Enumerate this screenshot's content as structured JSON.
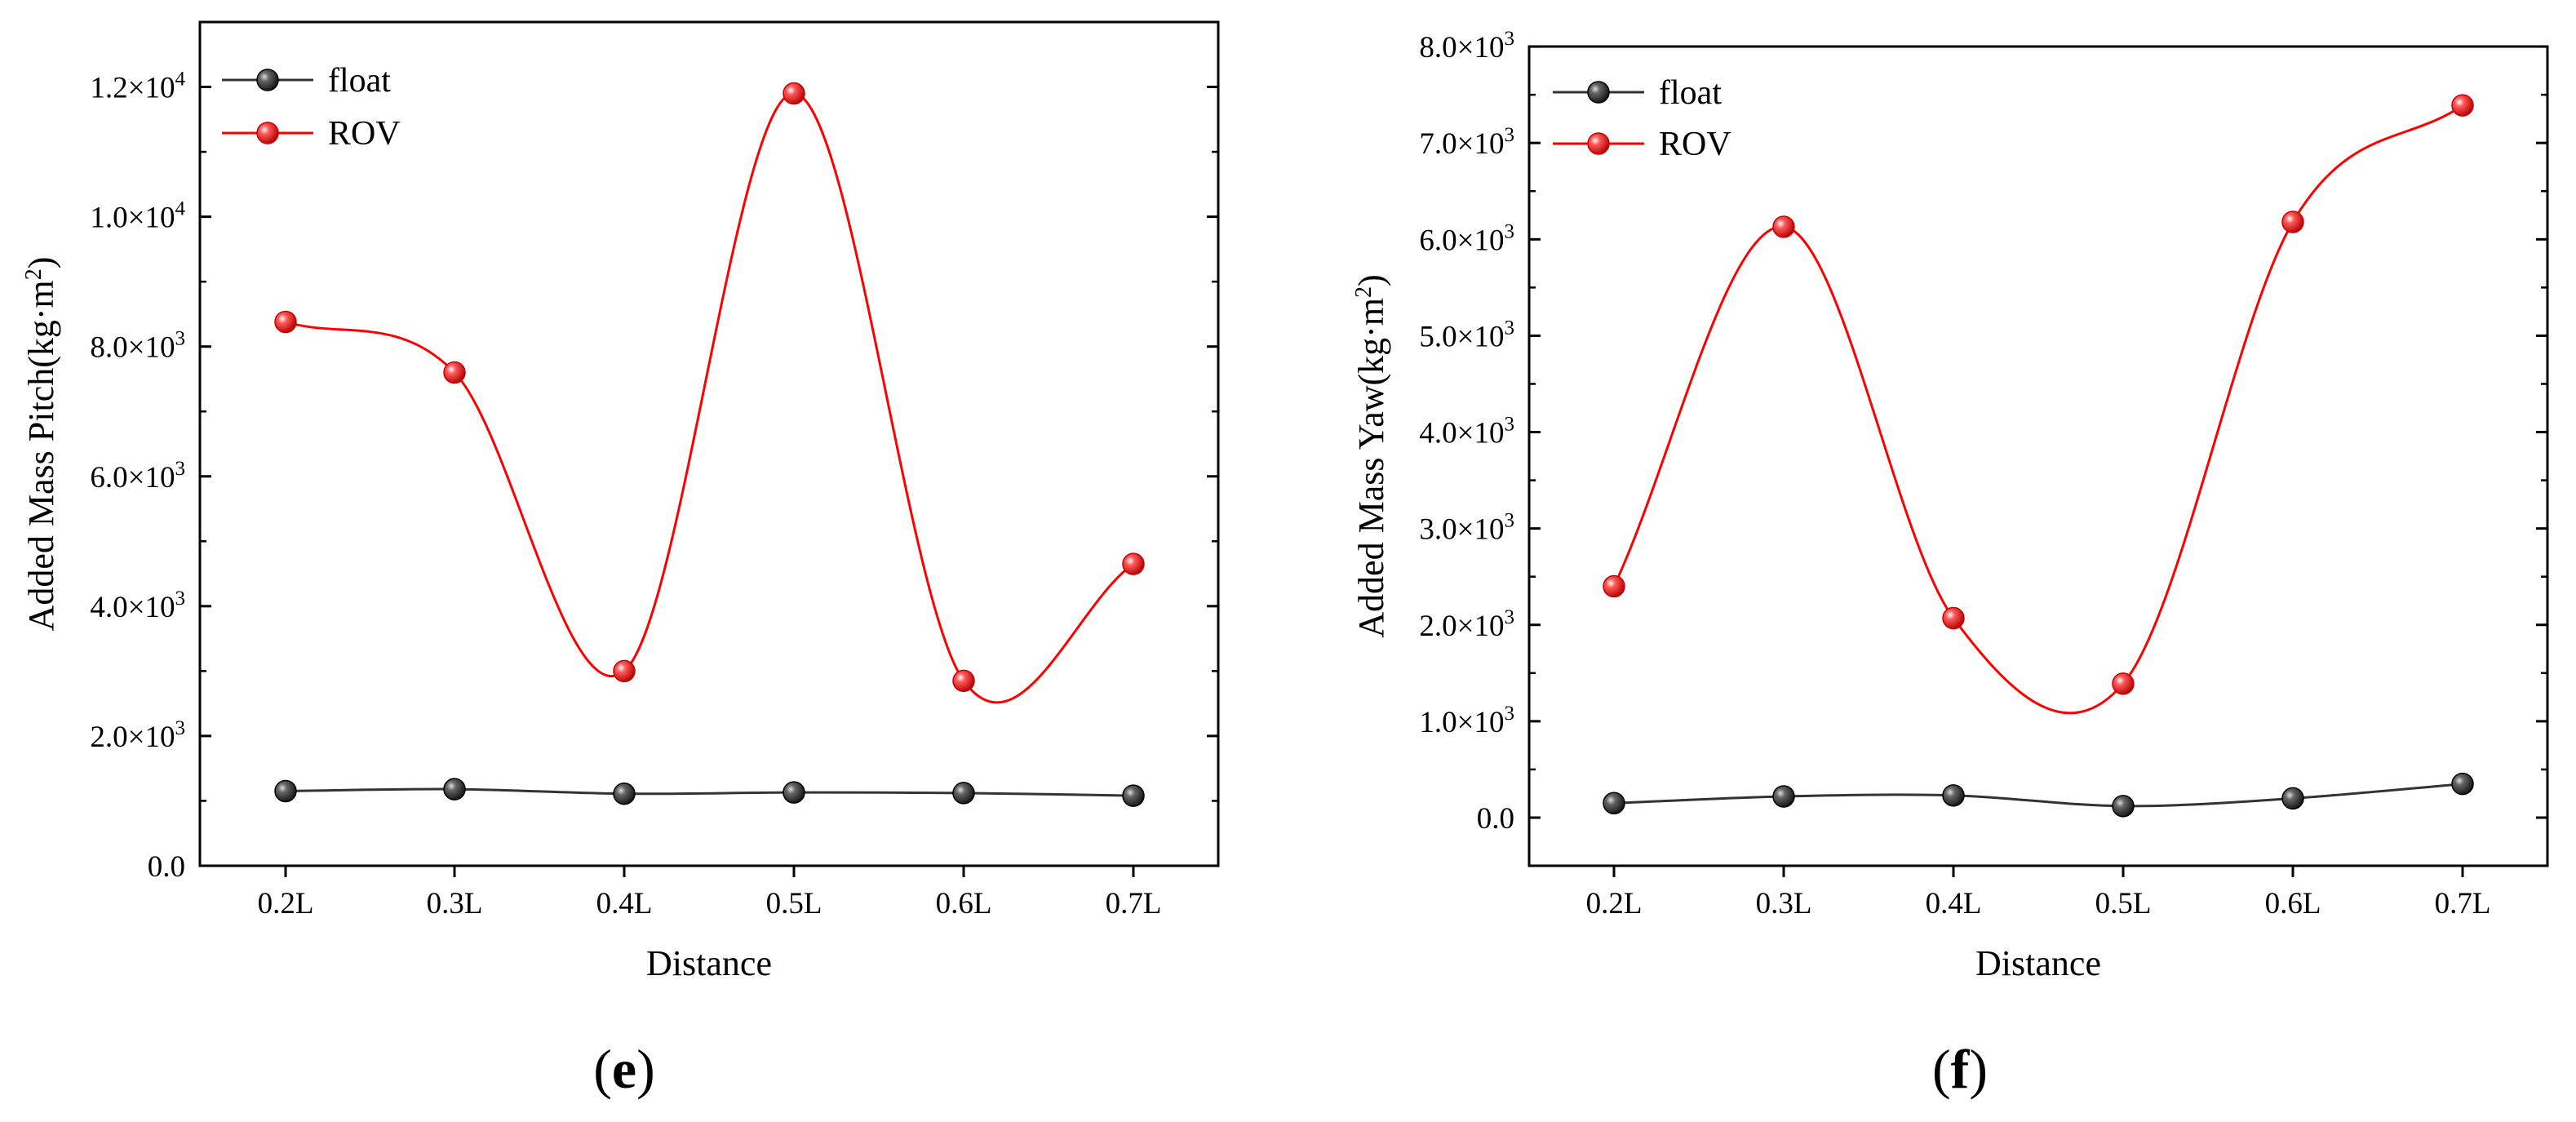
{
  "chart_data": [
    {
      "type": "line",
      "panel_label": "e",
      "categories": [
        "0.2L",
        "0.3L",
        "0.4L",
        "0.5L",
        "0.6L",
        "0.7L"
      ],
      "xlabel": "Distance",
      "ylabel": "Added Mass Pitch(kg·m²)",
      "ylim": [
        0,
        13000
      ],
      "y_ticks": [
        {
          "value": 0,
          "mant": "0.0",
          "exp": ""
        },
        {
          "value": 2000,
          "mant": "2.0×10",
          "exp": "3"
        },
        {
          "value": 4000,
          "mant": "4.0×10",
          "exp": "3"
        },
        {
          "value": 6000,
          "mant": "6.0×10",
          "exp": "3"
        },
        {
          "value": 8000,
          "mant": "8.0×10",
          "exp": "3"
        },
        {
          "value": 10000,
          "mant": "1.0×10",
          "exp": "4"
        },
        {
          "value": 12000,
          "mant": "1.2×10",
          "exp": "4"
        }
      ],
      "legend_position": "top-left",
      "series": [
        {
          "name": "float",
          "color": "#333333",
          "values": [
            1150,
            1180,
            1110,
            1130,
            1120,
            1080
          ]
        },
        {
          "name": "ROV",
          "color": "#ff0000",
          "values": [
            8380,
            7600,
            3000,
            11900,
            2850,
            4650
          ]
        }
      ]
    },
    {
      "type": "line",
      "panel_label": "f",
      "categories": [
        "0.2L",
        "0.3L",
        "0.4L",
        "0.5L",
        "0.6L",
        "0.7L"
      ],
      "xlabel": "Distance",
      "ylabel": "Added Mass Yaw(kg·m²)",
      "ylim": [
        -500,
        8000
      ],
      "y_ticks": [
        {
          "value": 0,
          "mant": "0.0",
          "exp": ""
        },
        {
          "value": 1000,
          "mant": "1.0×10",
          "exp": "3"
        },
        {
          "value": 2000,
          "mant": "2.0×10",
          "exp": "3"
        },
        {
          "value": 3000,
          "mant": "3.0×10",
          "exp": "3"
        },
        {
          "value": 4000,
          "mant": "4.0×10",
          "exp": "3"
        },
        {
          "value": 5000,
          "mant": "5.0×10",
          "exp": "3"
        },
        {
          "value": 6000,
          "mant": "6.0×10",
          "exp": "3"
        },
        {
          "value": 7000,
          "mant": "7.0×10",
          "exp": "3"
        },
        {
          "value": 8000,
          "mant": "8.0×10",
          "exp": "3"
        }
      ],
      "legend_position": "top-left",
      "series": [
        {
          "name": "float",
          "color": "#333333",
          "values": [
            150,
            220,
            230,
            120,
            200,
            350
          ]
        },
        {
          "name": "ROV",
          "color": "#ff0000",
          "values": [
            2400,
            6130,
            2070,
            1390,
            6180,
            7390
          ]
        }
      ]
    }
  ]
}
